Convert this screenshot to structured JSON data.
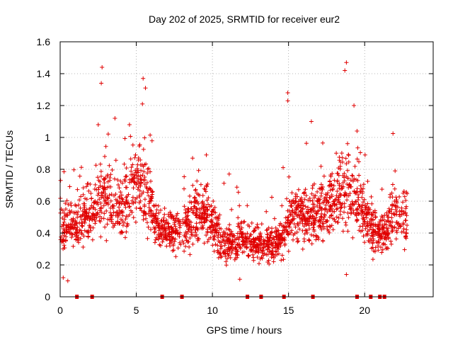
{
  "chart_data": {
    "type": "scatter",
    "title": "Day 202 of 2025, SRMTID for receiver eur2",
    "xlabel": "GPS time / hours",
    "ylabel": "SRMTID / TECUs",
    "xlim": [
      0,
      24.5
    ],
    "ylim": [
      0,
      1.6
    ],
    "x_ticks": [
      0,
      5,
      10,
      15,
      20
    ],
    "x_tick_labels": [
      "0",
      "5",
      "10",
      "15",
      "20"
    ],
    "y_ticks": [
      0,
      0.2,
      0.4,
      0.6,
      0.8,
      1.0,
      1.2,
      1.4,
      1.6
    ],
    "y_tick_labels": [
      "0",
      "0.2",
      "0.4",
      "0.6",
      "0.8",
      "1",
      "1.2",
      "1.4",
      "1.6"
    ],
    "grid": true,
    "marker": "plus",
    "color": "#e00000",
    "series": [
      {
        "name": "SRMTID",
        "x_range": [
          0,
          22.8
        ],
        "point_count": 2200,
        "trend": [
          {
            "x": 0.0,
            "y": 0.42
          },
          {
            "x": 0.7,
            "y": 0.45
          },
          {
            "x": 1.2,
            "y": 0.46
          },
          {
            "x": 1.8,
            "y": 0.5
          },
          {
            "x": 2.5,
            "y": 0.6
          },
          {
            "x": 3.0,
            "y": 0.65
          },
          {
            "x": 3.5,
            "y": 0.56
          },
          {
            "x": 4.0,
            "y": 0.55
          },
          {
            "x": 4.6,
            "y": 0.68
          },
          {
            "x": 5.2,
            "y": 0.72
          },
          {
            "x": 5.7,
            "y": 0.62
          },
          {
            "x": 6.3,
            "y": 0.45
          },
          {
            "x": 7.0,
            "y": 0.4
          },
          {
            "x": 8.0,
            "y": 0.42
          },
          {
            "x": 8.8,
            "y": 0.5
          },
          {
            "x": 9.5,
            "y": 0.55
          },
          {
            "x": 10.2,
            "y": 0.4
          },
          {
            "x": 11.0,
            "y": 0.33
          },
          {
            "x": 12.0,
            "y": 0.36
          },
          {
            "x": 12.6,
            "y": 0.34
          },
          {
            "x": 13.3,
            "y": 0.32
          },
          {
            "x": 14.0,
            "y": 0.33
          },
          {
            "x": 14.6,
            "y": 0.36
          },
          {
            "x": 15.2,
            "y": 0.52
          },
          {
            "x": 15.8,
            "y": 0.52
          },
          {
            "x": 16.5,
            "y": 0.5
          },
          {
            "x": 17.2,
            "y": 0.52
          },
          {
            "x": 17.8,
            "y": 0.58
          },
          {
            "x": 18.5,
            "y": 0.68
          },
          {
            "x": 19.0,
            "y": 0.66
          },
          {
            "x": 19.5,
            "y": 0.6
          },
          {
            "x": 20.0,
            "y": 0.5
          },
          {
            "x": 20.6,
            "y": 0.42
          },
          {
            "x": 21.3,
            "y": 0.4
          },
          {
            "x": 21.8,
            "y": 0.5
          },
          {
            "x": 22.3,
            "y": 0.52
          },
          {
            "x": 22.8,
            "y": 0.47
          }
        ],
        "spikes": [
          {
            "x": 2.75,
            "y": 1.44
          },
          {
            "x": 2.7,
            "y": 1.34
          },
          {
            "x": 2.5,
            "y": 1.08
          },
          {
            "x": 5.45,
            "y": 1.37
          },
          {
            "x": 5.6,
            "y": 1.31
          },
          {
            "x": 5.4,
            "y": 1.21
          },
          {
            "x": 4.55,
            "y": 1.08
          },
          {
            "x": 3.6,
            "y": 1.12
          },
          {
            "x": 8.7,
            "y": 0.87
          },
          {
            "x": 9.6,
            "y": 0.89
          },
          {
            "x": 11.1,
            "y": 0.77
          },
          {
            "x": 14.95,
            "y": 1.28
          },
          {
            "x": 14.95,
            "y": 1.23
          },
          {
            "x": 16.5,
            "y": 1.1
          },
          {
            "x": 18.8,
            "y": 1.47
          },
          {
            "x": 18.7,
            "y": 1.42
          },
          {
            "x": 19.3,
            "y": 1.2
          },
          {
            "x": 19.5,
            "y": 1.04
          },
          {
            "x": 22.0,
            "y": 0.79
          },
          {
            "x": 18.8,
            "y": 0.14
          },
          {
            "x": 0.5,
            "y": 0.1
          },
          {
            "x": 0.2,
            "y": 0.12
          },
          {
            "x": 11.8,
            "y": 0.11
          }
        ]
      }
    ],
    "outage_markers_x": [
      1.1,
      2.1,
      6.7,
      8.0,
      12.3,
      13.2,
      14.7,
      16.6,
      19.5,
      20.4,
      21.0,
      21.3
    ]
  }
}
